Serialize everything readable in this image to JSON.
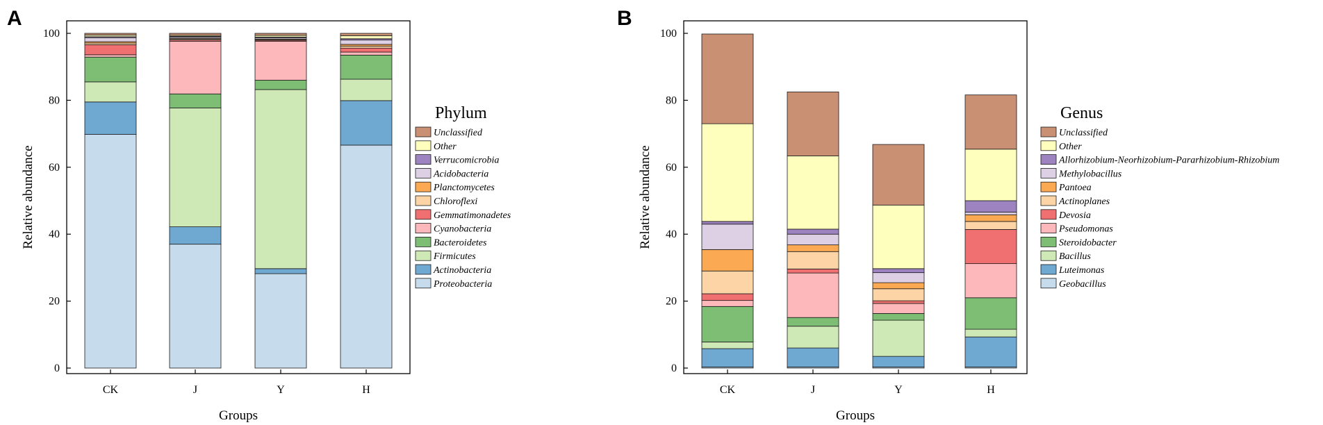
{
  "figure": {
    "panels": [
      "A",
      "B"
    ]
  },
  "chart_data": [
    {
      "panel": "A",
      "type": "bar",
      "stacked": true,
      "title": "",
      "xlabel": "Groups",
      "ylabel": "Relative abundance",
      "ylim": [
        0,
        100
      ],
      "yticks": [
        0,
        20,
        40,
        60,
        80,
        100
      ],
      "categories": [
        "CK",
        "J",
        "Y",
        "H"
      ],
      "legend_title": "Phylum",
      "legend_position": "right",
      "series": [
        {
          "name": "Proteobacteria",
          "color": "#c6dcec",
          "values": [
            69.8,
            37.0,
            28.2,
            66.6
          ]
        },
        {
          "name": "Actinobacteria",
          "color": "#6fa8d0",
          "values": [
            9.7,
            5.2,
            1.5,
            13.3
          ]
        },
        {
          "name": "Firmicutes",
          "color": "#cfe9b6",
          "values": [
            6.0,
            35.5,
            53.5,
            6.4
          ]
        },
        {
          "name": "Bacteroidetes",
          "color": "#7dbd74",
          "values": [
            7.4,
            4.2,
            2.8,
            7.2
          ]
        },
        {
          "name": "Cyanobacteria",
          "color": "#fcb8ba",
          "values": [
            0.7,
            15.7,
            11.6,
            0.9
          ]
        },
        {
          "name": "Gemmatimonadetes",
          "color": "#f07072",
          "values": [
            3.0,
            0.4,
            0.3,
            1.2
          ]
        },
        {
          "name": "Chloroflexi",
          "color": "#fdd4a6",
          "values": [
            0.5,
            0.3,
            0.2,
            0.6
          ]
        },
        {
          "name": "Planctomycetes",
          "color": "#fba953",
          "values": [
            0.4,
            0.2,
            0.2,
            0.5
          ]
        },
        {
          "name": "Acidobacteria",
          "color": "#ddd0e5",
          "values": [
            1.2,
            0.4,
            0.4,
            1.3
          ]
        },
        {
          "name": "Verrucomicrobia",
          "color": "#9d83bf",
          "values": [
            0.3,
            0.2,
            0.2,
            0.4
          ]
        },
        {
          "name": "Other",
          "color": "#fefebd",
          "values": [
            0.5,
            0.3,
            0.5,
            0.9
          ]
        },
        {
          "name": "Unclassified",
          "color": "#c99073",
          "values": [
            0.5,
            0.6,
            0.6,
            0.7
          ]
        }
      ]
    },
    {
      "panel": "B",
      "type": "bar",
      "stacked": true,
      "title": "",
      "xlabel": "Groups",
      "ylabel": "Relative abundance",
      "ylim": [
        0,
        100
      ],
      "yticks": [
        0,
        20,
        40,
        60,
        80,
        100
      ],
      "categories": [
        "CK",
        "J",
        "Y",
        "H"
      ],
      "legend_title": "Genus",
      "legend_position": "right",
      "series": [
        {
          "name": "Geobacillus",
          "color": "#c6dcec",
          "values": [
            0.3,
            0.3,
            0.3,
            0.3
          ]
        },
        {
          "name": "Luteimonas",
          "color": "#6fa8d0",
          "values": [
            5.5,
            5.7,
            3.2,
            9.0
          ]
        },
        {
          "name": "Bacillus",
          "color": "#cfe9b6",
          "values": [
            2.0,
            6.5,
            10.8,
            2.3
          ]
        },
        {
          "name": "Steroidobacter",
          "color": "#7dbd74",
          "values": [
            10.6,
            2.6,
            2.0,
            9.4
          ]
        },
        {
          "name": "Pseudomonas",
          "color": "#fcb8ba",
          "values": [
            1.8,
            13.3,
            3.0,
            10.2
          ]
        },
        {
          "name": "Devosia",
          "color": "#f07072",
          "values": [
            2.0,
            1.2,
            0.8,
            10.2
          ]
        },
        {
          "name": "Actinoplanes",
          "color": "#fdd4a6",
          "values": [
            6.8,
            5.2,
            3.6,
            2.4
          ]
        },
        {
          "name": "Pantoea",
          "color": "#fba953",
          "values": [
            6.4,
            2.0,
            1.8,
            2.0
          ]
        },
        {
          "name": "Methylobacillus",
          "color": "#ddd0e5",
          "values": [
            7.6,
            3.2,
            3.0,
            0.8
          ]
        },
        {
          "name": "Allorhizobium-Neorhizobium-Pararhizobium-Rhizobium",
          "color": "#9d83bf",
          "values": [
            0.8,
            1.5,
            1.2,
            3.4
          ]
        },
        {
          "name": "Other",
          "color": "#fefebd",
          "values": [
            29.2,
            21.9,
            19.0,
            15.4
          ]
        },
        {
          "name": "Unclassified",
          "color": "#c99073",
          "values": [
            26.8,
            19.1,
            18.1,
            16.2
          ]
        }
      ]
    }
  ]
}
